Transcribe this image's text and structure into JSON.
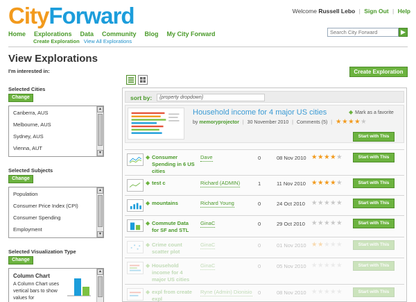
{
  "header": {
    "logo_part1": "City",
    "logo_part2": "Forward",
    "welcome_text": "Welcome",
    "user_name": "Russell Lebo",
    "sign_out": "Sign Out",
    "help": "Help"
  },
  "nav": {
    "items": [
      "Home",
      "Explorations",
      "Data",
      "Community",
      "Blog",
      "My City Forward"
    ],
    "sub_items": [
      "Create Exploration",
      "View All Explorations"
    ]
  },
  "search": {
    "placeholder": "Search City Forward",
    "button": "go-icon"
  },
  "page": {
    "title": "View Explorations",
    "interest_label": "I'm interested in:",
    "create_button": "Create Exploration"
  },
  "filters": {
    "change_label": "Change",
    "cities": {
      "heading": "Selected Cities",
      "items": [
        "Canberra, AUS",
        "Melbourne, AUS",
        "Sydney, AUS",
        "Vienna, AUT"
      ]
    },
    "subjects": {
      "heading": "Selected Subjects",
      "items": [
        "Population",
        "Consumer Price Index (CPI)",
        "Consumer Spending",
        "Employment"
      ]
    },
    "viz": {
      "heading": "Selected Visualization Type",
      "name": "Column Chart",
      "description": "A Column Chart uses vertical bars to show values for",
      "colors": {
        "bar_blue": "#1c9ddb",
        "bar_green": "#7dc242"
      }
    }
  },
  "list": {
    "sort_label": "sort by:",
    "sort_value": "{property dropdown}",
    "view_icons": [
      "list-view-icon",
      "grid-view-icon"
    ],
    "featured": {
      "title": "Household income for 4 major US cities",
      "by": "by",
      "author": "memoryprojector",
      "date": "30 November 2010",
      "comments": "Comments (5)",
      "rating": 4,
      "favorite_label": "Mark as a favorite",
      "button": "Start with This"
    },
    "rows": [
      {
        "title": "Consumer Spending in 6 US cities",
        "user": "Dave",
        "comments": "0",
        "date": "08 Nov 2010",
        "rating": 4,
        "button": "Start with This",
        "faded": false
      },
      {
        "title": "test c",
        "user": "Richard (ADMIN)",
        "comments": "1",
        "date": "11 Nov 2010",
        "rating": 4,
        "button": "Start with This",
        "faded": false
      },
      {
        "title": "mountains",
        "user": "Richard Young",
        "comments": "0",
        "date": "24 Oct 2010",
        "rating": 0,
        "button": "Start with This",
        "faded": false
      },
      {
        "title": "Commute Data for SF and STL",
        "user": "GinaC",
        "comments": "0",
        "date": "29 Oct 2010",
        "rating": 0,
        "button": "Start with This",
        "faded": false
      },
      {
        "title": "Crime count scatter plot",
        "user": "GinaC",
        "comments": "0",
        "date": "01 Nov 2010",
        "rating": 2,
        "button": "Start with This",
        "faded": true
      },
      {
        "title": "Household income for 4 major US cities",
        "user": "GinaC",
        "comments": "0",
        "date": "05 Nov 2010",
        "rating": 0,
        "button": "Start with This",
        "faded": true
      },
      {
        "title": "expl from create expl",
        "user": "Ryne (Admin) Dionisio",
        "comments": "0",
        "date": "08 Nov 2010",
        "rating": 0,
        "button": "Start with This",
        "faded": true
      }
    ]
  },
  "colors": {
    "green": "#6cb33f",
    "orange": "#f29a1d",
    "blue": "#1c9ddb"
  }
}
